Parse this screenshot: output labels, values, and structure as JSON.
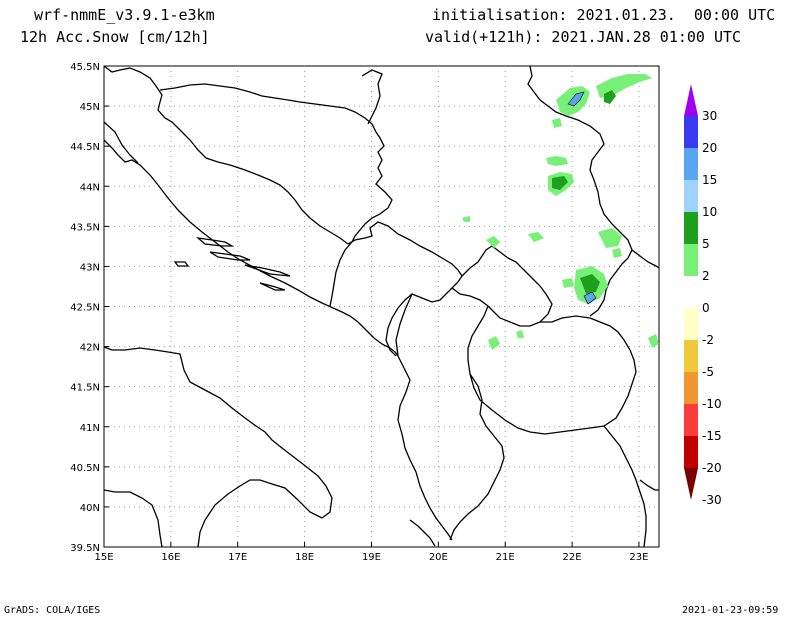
{
  "header": {
    "model": "wrf-nmmE_v3.9.1-e3km",
    "field": "12h Acc.Snow [cm/12h]",
    "init": "initialisation: 2021.01.23.  00:00 UTC",
    "valid": "valid(+121h): 2021.JAN.28 01:00 UTC"
  },
  "footer": {
    "left": "GrADS: COLA/IGES",
    "right": "2021-01-23-09:59"
  },
  "map": {
    "lon_range": [
      15,
      23.3
    ],
    "lat_range": [
      39.5,
      45.5
    ],
    "lon_ticks": [
      "15E",
      "16E",
      "17E",
      "18E",
      "19E",
      "20E",
      "21E",
      "22E",
      "23E"
    ],
    "lat_ticks": [
      "45.5N",
      "45N",
      "44.5N",
      "44N",
      "43.5N",
      "43N",
      "42.5N",
      "42N",
      "41.5N",
      "41N",
      "40.5N",
      "40N",
      "39.5N"
    ],
    "grid": true,
    "line_color": "#000000",
    "grid_color": "#a0a0a0"
  },
  "colorbar": {
    "labels": [
      "30",
      "20",
      "15",
      "10",
      "5",
      "2",
      "0",
      "-2",
      "-5",
      "-10",
      "-15",
      "-20",
      "-30"
    ],
    "colors": [
      "#a000f0",
      "#3a3af0",
      "#5aa5f0",
      "#a0d2ff",
      "#1ea01e",
      "#78f078",
      "#ffffff",
      "#ffffc8",
      "#f0c83c",
      "#f09632",
      "#fa3c3c",
      "#c00000",
      "#7a0000"
    ]
  }
}
